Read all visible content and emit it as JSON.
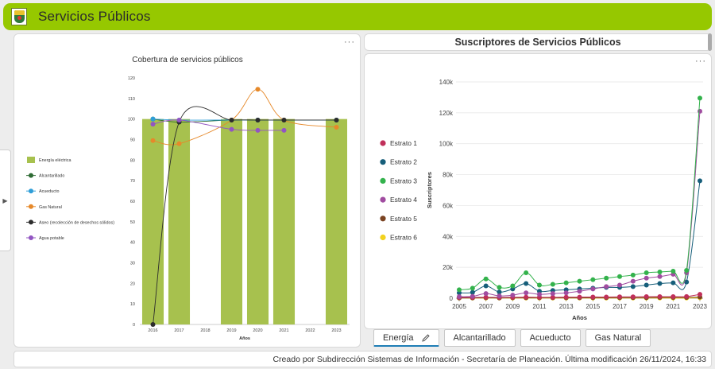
{
  "header": {
    "title": "Servicios Públicos"
  },
  "chart1": {
    "menu": "···",
    "legend": [
      "Energía eléctrica",
      "Alcantarillado",
      "Acueducto",
      "Gas Natural",
      "Aseo (recolección de desechos sólidos)",
      "Agua potable"
    ]
  },
  "chart2": {
    "title_bar": "Suscriptores de Servicios Públicos",
    "menu": "···"
  },
  "tabs": [
    "Energía",
    "Alcantarillado",
    "Acueducto",
    "Gas Natural"
  ],
  "footer": {
    "text": "Creado por Subdirección Sistemas de Información - Secretaría de Planeación. Última modificación 26/11/2024, 16:33"
  },
  "colors": {
    "header": "#96c800",
    "energia": "#a7c14e",
    "alcantarillado": "#2e6b34",
    "acueducto": "#2f9ed8",
    "gas": "#e6892a",
    "aseo": "#2c2c2c",
    "agua": "#9255c2",
    "estrato1": "#c0305a",
    "estrato2": "#165e7a",
    "estrato3": "#33b24c",
    "estrato4": "#a04ca0",
    "estrato5": "#7a4321",
    "estrato6": "#f2d21f"
  },
  "chart_data": [
    {
      "type": "bar",
      "title": "Cobertura de servicios públicos",
      "xlabel": "Años",
      "ylabel": "",
      "ylim": [
        0,
        120
      ],
      "yticks": [
        0,
        10,
        20,
        30,
        40,
        50,
        60,
        70,
        80,
        90,
        100,
        110,
        120
      ],
      "categories": [
        "2016",
        "2017",
        "2018",
        "2019",
        "2020",
        "2021",
        "2022",
        "2023"
      ],
      "legend_position": "left",
      "series": [
        {
          "name": "Energía eléctrica",
          "kind": "bar",
          "values": [
            100,
            100,
            null,
            100,
            100,
            100,
            null,
            100
          ]
        },
        {
          "name": "Alcantarillado",
          "kind": "line",
          "values": [
            100,
            98.5,
            null,
            99.5,
            99.5,
            99.5,
            null,
            99.5
          ]
        },
        {
          "name": "Acueducto",
          "kind": "line",
          "values": [
            100,
            99.5,
            null,
            99.5,
            99.5,
            99.5,
            null,
            99.5
          ]
        },
        {
          "name": "Gas Natural",
          "kind": "line",
          "values": [
            89.5,
            88,
            null,
            99.5,
            114.5,
            99.5,
            null,
            96
          ]
        },
        {
          "name": "Aseo (recolección de desechos sólidos)",
          "kind": "line",
          "values": [
            0,
            98.5,
            null,
            99.5,
            99.5,
            99.5,
            null,
            99.5
          ]
        },
        {
          "name": "Agua potable",
          "kind": "line",
          "values": [
            97.5,
            99.5,
            null,
            95,
            94.5,
            94.5,
            null,
            null
          ]
        }
      ]
    },
    {
      "type": "line",
      "title": "",
      "xlabel": "Años",
      "ylabel": "Suscriptores",
      "ylim": [
        0,
        140000
      ],
      "yticks": [
        0,
        20000,
        40000,
        60000,
        80000,
        100000,
        120000,
        140000
      ],
      "ytick_labels": [
        "0",
        "20k",
        "40k",
        "60k",
        "80k",
        "100k",
        "120k",
        "140k"
      ],
      "x": [
        2005,
        2006,
        2007,
        2008,
        2009,
        2010,
        2011,
        2012,
        2013,
        2014,
        2015,
        2016,
        2017,
        2018,
        2019,
        2020,
        2021,
        2022,
        2023
      ],
      "xtick_labels": [
        "2005",
        "2007",
        "2009",
        "2011",
        "2013",
        "2015",
        "2017",
        "2019",
        "2021",
        "2023"
      ],
      "legend_position": "left",
      "series": [
        {
          "name": "Estrato 1",
          "values": [
            500,
            500,
            600,
            500,
            600,
            700,
            600,
            600,
            700,
            700,
            800,
            800,
            900,
            900,
            1000,
            1000,
            1000,
            1100,
            2500
          ]
        },
        {
          "name": "Estrato 2",
          "values": [
            3500,
            3800,
            8000,
            4000,
            6000,
            9500,
            4500,
            5000,
            5500,
            6000,
            6500,
            7000,
            7000,
            7500,
            8500,
            9500,
            10000,
            10500,
            76000
          ]
        },
        {
          "name": "Estrato 3",
          "values": [
            5500,
            6500,
            12500,
            7000,
            8000,
            16500,
            8500,
            9000,
            10000,
            11000,
            12000,
            13000,
            14000,
            15000,
            16500,
            17000,
            17500,
            18000,
            129500
          ]
        },
        {
          "name": "Estrato 4",
          "values": [
            1000,
            1200,
            3000,
            1500,
            2000,
            3500,
            2500,
            3000,
            3500,
            4500,
            6000,
            7500,
            8500,
            11000,
            13000,
            14000,
            15500,
            16500,
            121000
          ]
        },
        {
          "name": "Estrato 5",
          "values": [
            200,
            200,
            300,
            200,
            300,
            300,
            300,
            300,
            300,
            300,
            400,
            400,
            400,
            400,
            400,
            500,
            500,
            500,
            800
          ]
        },
        {
          "name": "Estrato 6",
          "values": [
            100,
            100,
            100,
            100,
            100,
            100,
            100,
            100,
            100,
            100,
            100,
            100,
            100,
            100,
            100,
            100,
            100,
            100,
            300
          ]
        }
      ]
    }
  ]
}
